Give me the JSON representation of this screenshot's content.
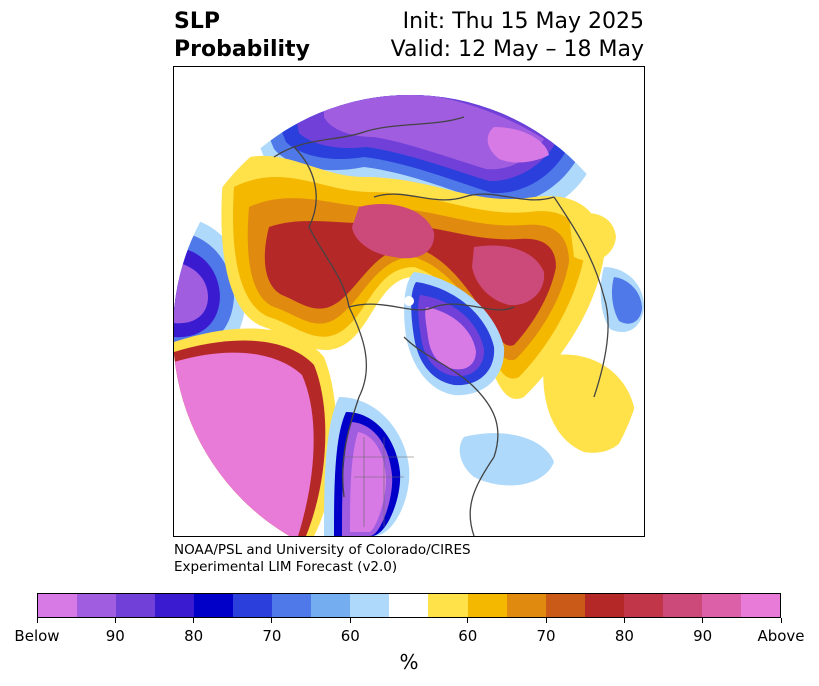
{
  "title": {
    "left_line1": "SLP",
    "left_line2": "Probability",
    "right_line1": "Init: Thu 15 May 2025",
    "right_line2": "Valid: 12 May – 18 May"
  },
  "credit": {
    "line1": "NOAA/PSL and University of Colorado/CIRES",
    "line2": "Experimental LIM Forecast (v2.0)"
  },
  "colorbar": {
    "colors": [
      "#d87ae6",
      "#a05de0",
      "#7040d8",
      "#3a1bd0",
      "#0000c8",
      "#2a3fdc",
      "#4f78e8",
      "#74aef0",
      "#aed9fa",
      "#ffffff",
      "#ffe14a",
      "#f5b800",
      "#e08a10",
      "#c95a18",
      "#b52828",
      "#c2364a",
      "#cc4a7a",
      "#dc60a8",
      "#e87ad8"
    ],
    "tick_labels": [
      "Below",
      "90",
      "80",
      "70",
      "60",
      "60",
      "70",
      "80",
      "90",
      "Above"
    ],
    "unit": "%"
  },
  "map": {
    "regions": [
      {
        "color": "#aed9fa"
      },
      {
        "color": "#ffe14a"
      },
      {
        "color": "#7040d8"
      }
    ]
  }
}
